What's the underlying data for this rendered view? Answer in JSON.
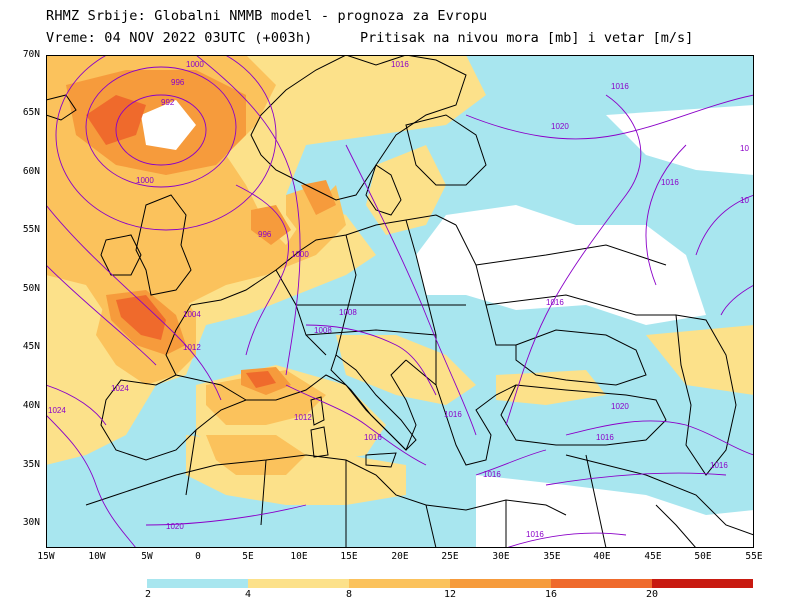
{
  "header": {
    "line1": "RHMZ Srbije: Globalni NMMB model - prognoza za Evropu",
    "line2": "Vreme: 04 NOV 2022 03UTC (+003h)",
    "line3": "Pritisak na nivou mora [mb] i vetar [m/s]"
  },
  "lat_labels": [
    "70N",
    "65N",
    "60N",
    "55N",
    "50N",
    "45N",
    "40N",
    "35N",
    "30N"
  ],
  "lon_labels": [
    "15W",
    "10W",
    "5W",
    "0",
    "5E",
    "10E",
    "15E",
    "20E",
    "25E",
    "30E",
    "35E",
    "40E",
    "45E",
    "50E",
    "55E"
  ],
  "isobar_labels": [
    "1000",
    "996",
    "992",
    "1000",
    "996",
    "1000",
    "1004",
    "1012",
    "1008",
    "1008",
    "1012",
    "1016",
    "1020",
    "1016",
    "1016",
    "1016",
    "1024",
    "1024",
    "1020",
    "1016",
    "1016",
    "1016",
    "1020",
    "1016",
    "1016",
    "1016",
    "10",
    "10"
  ],
  "colorbar": {
    "labels": [
      "2",
      "4",
      "8",
      "12",
      "16",
      "20"
    ],
    "colors": [
      "#a8e6ef",
      "#fce18a",
      "#fbc25c",
      "#f69b3c",
      "#ef6a2c",
      "#d42016",
      "#b50a0a"
    ]
  },
  "colors": {
    "sea": "#ffffff",
    "wind_2_4": "#a8e6ef",
    "wind_4_8": "#fce18a",
    "wind_8_12": "#fbc25c",
    "wind_12_16": "#f69b3c",
    "wind_16_20": "#ef6a2c",
    "isobar": "#8a00c8",
    "coast": "#000000"
  }
}
